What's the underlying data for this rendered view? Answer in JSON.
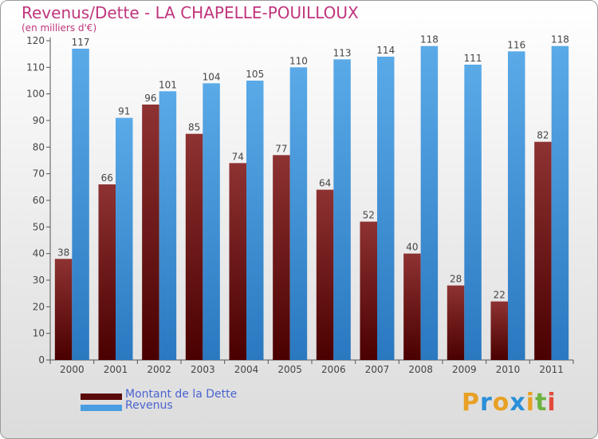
{
  "chart_data": {
    "type": "bar",
    "title": "Revenus/Dette - LA CHAPELLE-POUILLOUX",
    "subtitle": "(en milliers d'€)",
    "categories": [
      "2000",
      "2001",
      "2002",
      "2003",
      "2004",
      "2005",
      "2006",
      "2007",
      "2008",
      "2009",
      "2010",
      "2011"
    ],
    "series": [
      {
        "name": "Montant de la Dette",
        "color": "#7a1a1a",
        "values": [
          38,
          66,
          96,
          85,
          74,
          77,
          64,
          52,
          40,
          28,
          22,
          82
        ]
      },
      {
        "name": "Revenus",
        "color": "#4a9de0",
        "values": [
          117,
          91,
          101,
          104,
          105,
          110,
          113,
          114,
          118,
          111,
          116,
          118
        ]
      }
    ],
    "ylim": [
      0,
      120
    ],
    "yticks": [
      0,
      10,
      20,
      30,
      40,
      50,
      60,
      70,
      80,
      90,
      100,
      110,
      120
    ],
    "grid": false,
    "legend_position": "bottom-left"
  },
  "logo": {
    "letters": [
      {
        "ch": "P",
        "color": "#e8a126"
      },
      {
        "ch": "r",
        "color": "#2a8fd8"
      },
      {
        "ch": "o",
        "color": "#e8a126"
      },
      {
        "ch": "x",
        "color": "#2a8fd8"
      },
      {
        "ch": "i",
        "color": "#e8a126"
      },
      {
        "ch": "t",
        "color": "#6cb33f"
      },
      {
        "ch": "i",
        "color": "#e24a3a"
      }
    ]
  }
}
